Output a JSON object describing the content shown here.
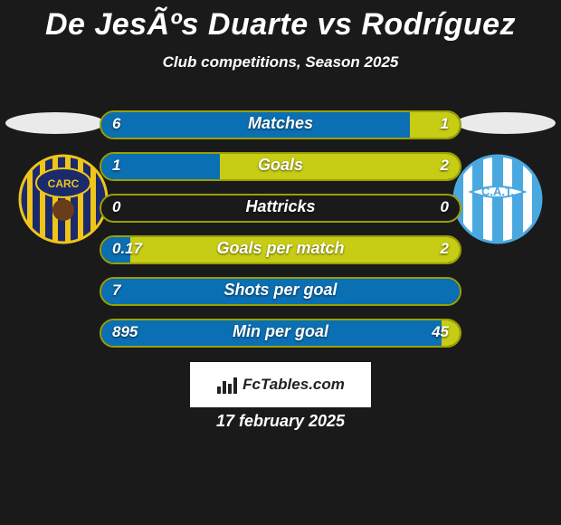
{
  "title": "De JesÃºs Duarte vs Rodríguez",
  "subtitle": "Club competitions, Season 2025",
  "date": "17 february 2025",
  "watermark_text": "FcTables.com",
  "colors": {
    "background": "#1a1a1a",
    "bar_left": "#0b6fb3",
    "bar_right": "#c7cc15",
    "bar_border": "#99a000",
    "player_ellipse": "#eaeaea",
    "text": "#ffffff"
  },
  "rows": [
    {
      "label": "Matches",
      "left_val": "6",
      "right_val": "1",
      "left_pct": 86,
      "right_pct": 14
    },
    {
      "label": "Goals",
      "left_val": "1",
      "right_val": "2",
      "left_pct": 33,
      "right_pct": 67
    },
    {
      "label": "Hattricks",
      "left_val": "0",
      "right_val": "0",
      "left_pct": 0,
      "right_pct": 0
    },
    {
      "label": "Goals per match",
      "left_val": "0.17",
      "right_val": "2",
      "left_pct": 8,
      "right_pct": 92
    },
    {
      "label": "Shots per goal",
      "left_val": "7",
      "right_val": "",
      "left_pct": 100,
      "right_pct": 0
    },
    {
      "label": "Min per goal",
      "left_val": "895",
      "right_val": "45",
      "left_pct": 95,
      "right_pct": 5
    }
  ],
  "badges": {
    "left": {
      "name": "rosario-central-crest",
      "bg": "#1a2a6c",
      "stripes": "#f0c419",
      "text": "CARC"
    },
    "right": {
      "name": "atletico-tucuman-crest",
      "bg": "#ffffff",
      "stripes": "#4aa8e0",
      "text": "C.A.T."
    }
  }
}
